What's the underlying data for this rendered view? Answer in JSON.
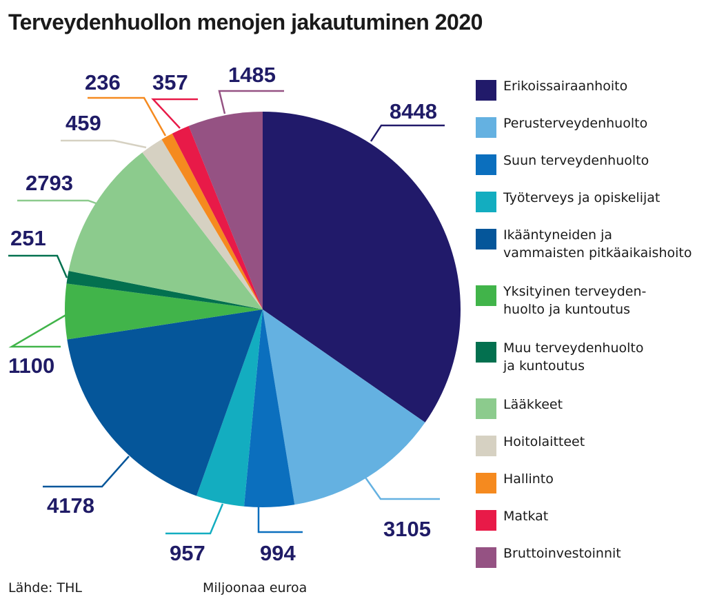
{
  "title": "Terveydenhuollon menojen jakautuminen 2020",
  "source": "Lähde: THL",
  "unit": "Miljoonaa euroa",
  "chart_data": {
    "type": "pie",
    "title": "Terveydenhuollon menojen jakautuminen 2020",
    "unit": "Miljoonaa euroa",
    "start": "12 o'clock",
    "direction": "clockwise",
    "legend_position": "right",
    "slices": [
      {
        "label": "Erikoissairaanhoito",
        "value": 8448,
        "color": "#211a6a"
      },
      {
        "label": "Perusterveydenhuolto",
        "value": 3105,
        "color": "#64b1e1"
      },
      {
        "label": "Suun terveydenhuolto",
        "value": 994,
        "color": "#0b6fbe"
      },
      {
        "label": "Työterveys ja opiskelijat",
        "value": 957,
        "color": "#13adc0"
      },
      {
        "label": "Ikääntyneiden ja\nvammaisten pitkäaikaishoito",
        "value": 4178,
        "color": "#05569a"
      },
      {
        "label": "Yksityinen terveyden-\nhuolto ja kuntoutus",
        "value": 1100,
        "color": "#41b44a"
      },
      {
        "label": "Muu terveydenhuolto\nja kuntoutus",
        "value": 251,
        "color": "#03704f"
      },
      {
        "label": "Lääkkeet",
        "value": 2793,
        "color": "#8ccb8d"
      },
      {
        "label": "Hoitolaitteet",
        "value": 459,
        "color": "#d6d1c2"
      },
      {
        "label": "Hallinto",
        "value": 236,
        "color": "#f58a1f"
      },
      {
        "label": "Matkat",
        "value": 357,
        "color": "#e81a48"
      },
      {
        "label": "Bruttoinvestoinnit",
        "value": 1485,
        "color": "#955283"
      }
    ]
  }
}
